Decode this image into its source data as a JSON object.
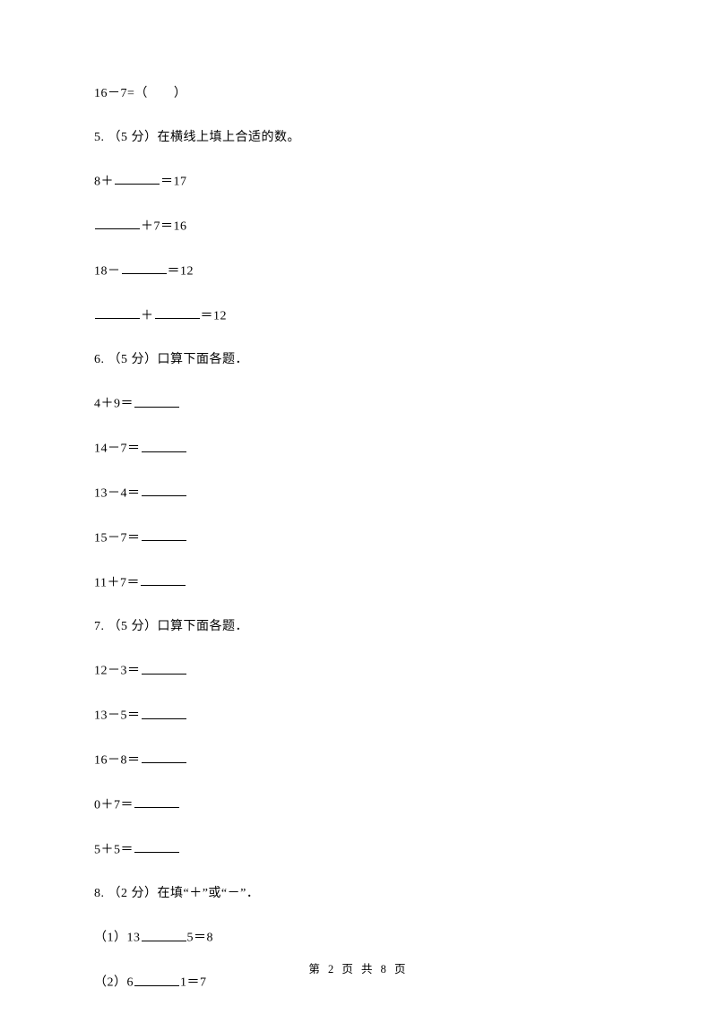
{
  "q4_line": "16－7=（　　）",
  "q5": {
    "stem": "5. （5 分）在横线上填上合适的数。",
    "items": [
      {
        "pre": "8＋",
        "b1": true,
        "post": "＝17"
      },
      {
        "b1": true,
        "mid": "＋7＝16"
      },
      {
        "pre": "18－",
        "b1": true,
        "post": "＝12"
      },
      {
        "b1": true,
        "mid": "＋",
        "b2": true,
        "post": "＝12"
      }
    ]
  },
  "q6": {
    "stem": "6. （5 分）口算下面各题．",
    "items": [
      {
        "pre": "4＋9＝"
      },
      {
        "pre": "14－7＝"
      },
      {
        "pre": "13－4＝"
      },
      {
        "pre": "15－7＝"
      },
      {
        "pre": "11＋7＝"
      }
    ]
  },
  "q7": {
    "stem": "7. （5 分）口算下面各题．",
    "items": [
      {
        "pre": "12－3＝"
      },
      {
        "pre": "13－5＝"
      },
      {
        "pre": "16－8＝"
      },
      {
        "pre": "0＋7＝"
      },
      {
        "pre": "5＋5＝"
      }
    ]
  },
  "q8": {
    "stem": "8. （2 分）在填“＋”或“－”．",
    "items": [
      {
        "pre": "（1）13",
        "b1": true,
        "post": "5＝8"
      },
      {
        "pre": "（2）6",
        "b1": true,
        "post": "1＝7"
      }
    ]
  },
  "footer": "第 2 页 共 8 页"
}
